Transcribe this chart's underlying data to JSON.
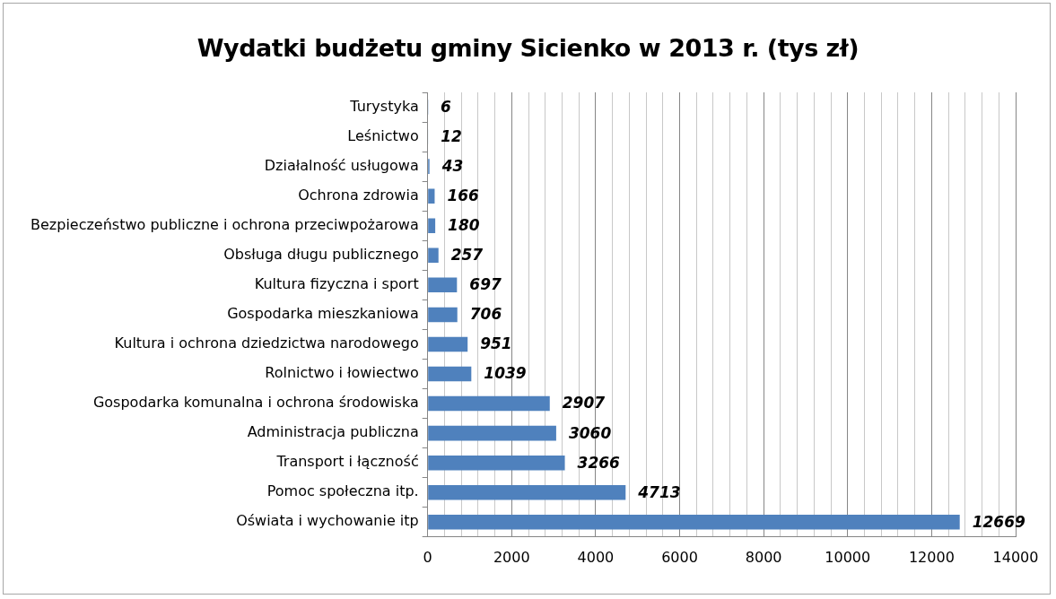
{
  "chart_data": {
    "type": "bar",
    "orientation": "horizontal",
    "title": "Wydatki budżetu gminy Sicienko w 2013 r. (tys zł)",
    "categories": [
      "Turystyka",
      "Leśnictwo",
      "Działalność usługowa",
      "Ochrona zdrowia",
      "Bezpieczeństwo publiczne i ochrona przeciwpożarowa",
      "Obsługa długu publicznego",
      "Kultura fizyczna i sport",
      "Gospodarka mieszkaniowa",
      "Kultura i ochrona dziedzictwa narodowego",
      "Rolnictwo i łowiectwo",
      "Gospodarka komunalna i ochrona środowiska",
      "Administracja publiczna",
      "Transport i łączność",
      "Pomoc społeczna itp.",
      "Oświata i wychowanie itp"
    ],
    "values": [
      6,
      12,
      43,
      166,
      180,
      257,
      697,
      706,
      951,
      1039,
      2907,
      3060,
      3266,
      4713,
      12669
    ],
    "color": "#4f81bd",
    "xlim": [
      0,
      14000
    ],
    "xticks": [
      0,
      {
        "value": 400,
        "label": null
      },
      {
        "value": 800,
        "label": null
      },
      {
        "value": 1200,
        "label": null
      },
      {
        "value": 1600,
        "label": null
      },
      2000,
      {
        "value": 2400,
        "label": null
      },
      {
        "value": 2800,
        "label": null
      },
      {
        "value": 3200,
        "label": null
      },
      {
        "value": 3600,
        "label": null
      },
      4000,
      {
        "value": 4400,
        "label": null
      },
      {
        "value": 4800,
        "label": null
      },
      {
        "value": 5200,
        "label": null
      },
      {
        "value": 5600,
        "label": null
      },
      6000,
      {
        "value": 6400,
        "label": null
      },
      {
        "value": 6800,
        "label": null
      },
      {
        "value": 7200,
        "label": null
      },
      {
        "value": 7600,
        "label": null
      },
      8000,
      {
        "value": 8400,
        "label": null
      },
      {
        "value": 8800,
        "label": null
      },
      {
        "value": 9200,
        "label": null
      },
      {
        "value": 9600,
        "label": null
      },
      10000,
      {
        "value": 10400,
        "label": null
      },
      {
        "value": 10800,
        "label": null
      },
      {
        "value": 11200,
        "label": null
      },
      {
        "value": 11600,
        "label": null
      },
      12000,
      {
        "value": 12400,
        "label": null
      },
      {
        "value": 12800,
        "label": null
      },
      {
        "value": 13200,
        "label": null
      },
      {
        "value": 13600,
        "label": null
      },
      14000
    ],
    "grid": "x",
    "legend": false,
    "data_labels": true
  }
}
